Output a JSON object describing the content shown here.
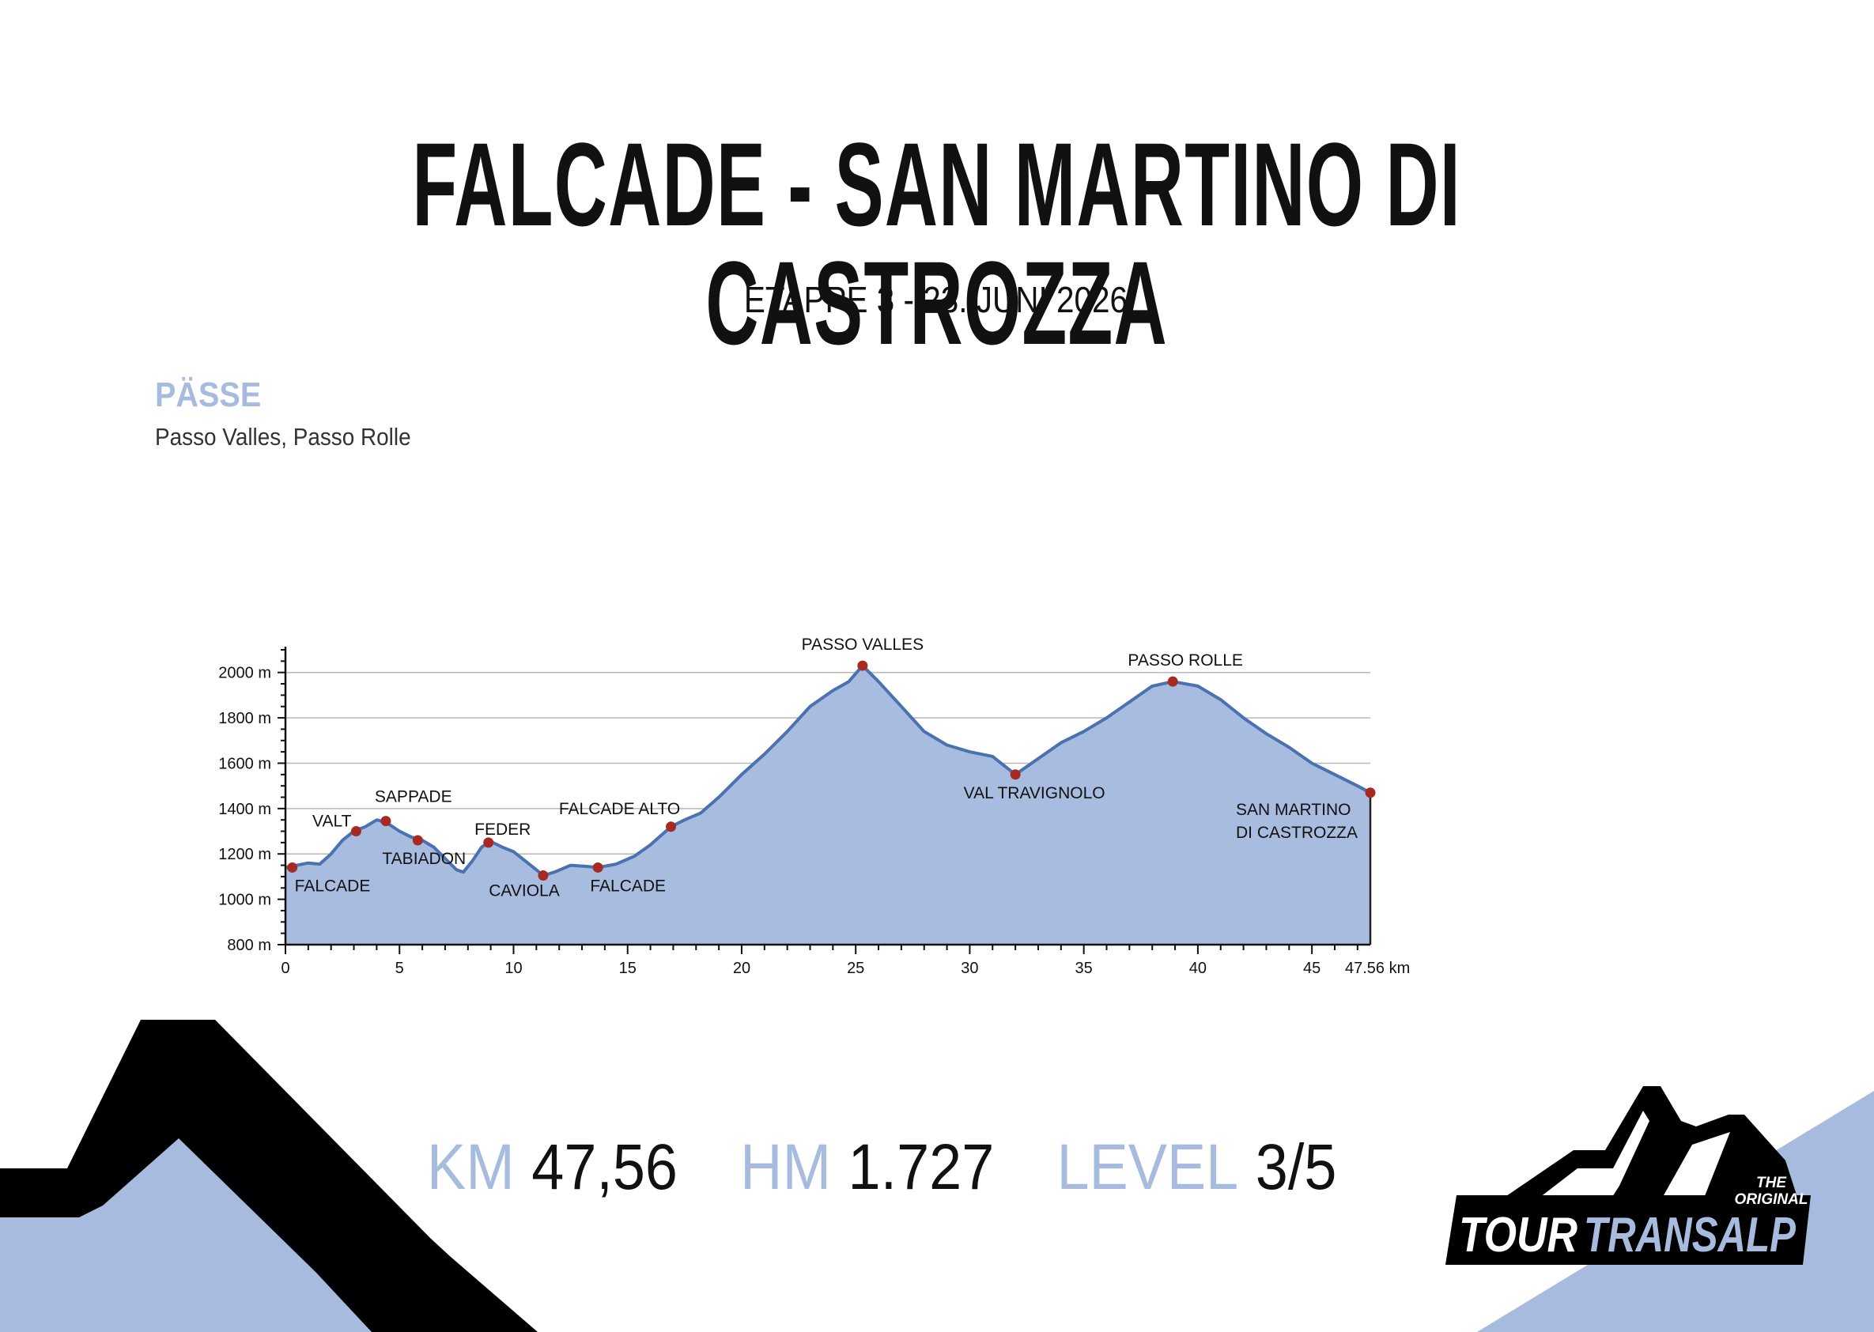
{
  "header": {
    "title": "FALCADE - SAN MARTINO DI CASTROZZA",
    "subtitle": "ETAPPE 3 - 23. JUNI 2026"
  },
  "passes": {
    "heading": "PÄSSE",
    "text": "Passo Valles, Passo Rolle"
  },
  "stats": {
    "km_label": "KM",
    "km_value": "47,56",
    "hm_label": "HM",
    "hm_value": "1.727",
    "level_label": "LEVEL",
    "level_value": "3/5"
  },
  "logo": {
    "tagline_1": "THE",
    "tagline_2": "ORIGINAL",
    "word_1": "TOUR",
    "word_2": "TRANSALP"
  },
  "colors": {
    "accent": "#a6bbde",
    "profile_fill": "#a8bcdf",
    "profile_line": "#4a72b0",
    "waypoint": "#a62a22",
    "dark": "#000000"
  },
  "chart_data": {
    "type": "area",
    "title": "",
    "xlabel": "",
    "ylabel": "",
    "xlim": [
      0,
      47.56
    ],
    "ylim": [
      800,
      2100
    ],
    "x_ticks": [
      0,
      5,
      10,
      15,
      20,
      25,
      30,
      35,
      40,
      45,
      47.56
    ],
    "x_tick_labels": [
      "0",
      "5",
      "10",
      "15",
      "20",
      "25",
      "30",
      "35",
      "40",
      "45",
      "47.56 km"
    ],
    "y_ticks": [
      800,
      1000,
      1200,
      1400,
      1600,
      1800,
      2000
    ],
    "y_tick_labels": [
      "800 m",
      "1000 m",
      "1200 m",
      "1400 m",
      "1600 m",
      "1800 m",
      "2000 m"
    ],
    "grid": "horizontal",
    "profile": [
      [
        0,
        1140
      ],
      [
        0.5,
        1150
      ],
      [
        1,
        1160
      ],
      [
        1.5,
        1155
      ],
      [
        2,
        1200
      ],
      [
        2.5,
        1260
      ],
      [
        3,
        1300
      ],
      [
        3.5,
        1320
      ],
      [
        4,
        1350
      ],
      [
        4.4,
        1340
      ],
      [
        5,
        1300
      ],
      [
        5.5,
        1275
      ],
      [
        6,
        1260
      ],
      [
        6.5,
        1230
      ],
      [
        7,
        1180
      ],
      [
        7.5,
        1130
      ],
      [
        7.8,
        1120
      ],
      [
        8.2,
        1170
      ],
      [
        8.6,
        1230
      ],
      [
        9,
        1255
      ],
      [
        9.5,
        1230
      ],
      [
        10,
        1210
      ],
      [
        10.5,
        1170
      ],
      [
        11,
        1130
      ],
      [
        11.3,
        1105
      ],
      [
        11.8,
        1120
      ],
      [
        12.5,
        1150
      ],
      [
        13.2,
        1145
      ],
      [
        13.7,
        1140
      ],
      [
        14.5,
        1155
      ],
      [
        15.3,
        1190
      ],
      [
        16,
        1240
      ],
      [
        16.9,
        1320
      ],
      [
        17.5,
        1350
      ],
      [
        18.2,
        1380
      ],
      [
        19,
        1450
      ],
      [
        20,
        1550
      ],
      [
        21,
        1640
      ],
      [
        22,
        1740
      ],
      [
        23,
        1850
      ],
      [
        24,
        1920
      ],
      [
        24.7,
        1960
      ],
      [
        25.3,
        2030
      ],
      [
        26,
        1960
      ],
      [
        27,
        1850
      ],
      [
        28,
        1740
      ],
      [
        29,
        1680
      ],
      [
        30,
        1650
      ],
      [
        31,
        1630
      ],
      [
        32,
        1550
      ],
      [
        33,
        1620
      ],
      [
        34,
        1690
      ],
      [
        35,
        1740
      ],
      [
        36,
        1800
      ],
      [
        37,
        1870
      ],
      [
        38,
        1940
      ],
      [
        38.9,
        1960
      ],
      [
        40,
        1940
      ],
      [
        41,
        1880
      ],
      [
        42,
        1800
      ],
      [
        43,
        1730
      ],
      [
        44,
        1670
      ],
      [
        45,
        1600
      ],
      [
        46,
        1550
      ],
      [
        47,
        1500
      ],
      [
        47.56,
        1470
      ]
    ],
    "waypoints": [
      {
        "name": "FALCADE",
        "x": 0.3,
        "y": 1140
      },
      {
        "name": "VALT",
        "x": 3.1,
        "y": 1300
      },
      {
        "name": "SAPPADE",
        "x": 4.4,
        "y": 1345
      },
      {
        "name": "TABIADON",
        "x": 5.8,
        "y": 1260
      },
      {
        "name": "FEDER",
        "x": 8.9,
        "y": 1250
      },
      {
        "name": "CAVIOLA",
        "x": 11.3,
        "y": 1105
      },
      {
        "name": "FALCADE",
        "x": 13.7,
        "y": 1140
      },
      {
        "name": "FALCADE ALTO",
        "x": 16.9,
        "y": 1320
      },
      {
        "name": "PASSO VALLES",
        "x": 25.3,
        "y": 2030
      },
      {
        "name": "VAL TRAVIGNOLO",
        "x": 32,
        "y": 1550
      },
      {
        "name": "PASSO ROLLE",
        "x": 38.9,
        "y": 1960
      },
      {
        "name": "SAN MARTINO DI CASTROZZA",
        "x": 47.56,
        "y": 1470
      }
    ],
    "waypoint_label_lines": [
      [
        "FALCADE"
      ],
      [
        "VALT"
      ],
      [
        "SAPPADE"
      ],
      [
        "TABIADON"
      ],
      [
        "FEDER"
      ],
      [
        "CAVIOLA"
      ],
      [
        "FALCADE"
      ],
      [
        "FALCADE ALTO"
      ],
      [
        "PASSO VALLES"
      ],
      [
        "VAL TRAVIGNOLO"
      ],
      [
        "PASSO ROLLE"
      ],
      [
        "SAN MARTINO",
        "DI CASTROZZA"
      ]
    ]
  }
}
